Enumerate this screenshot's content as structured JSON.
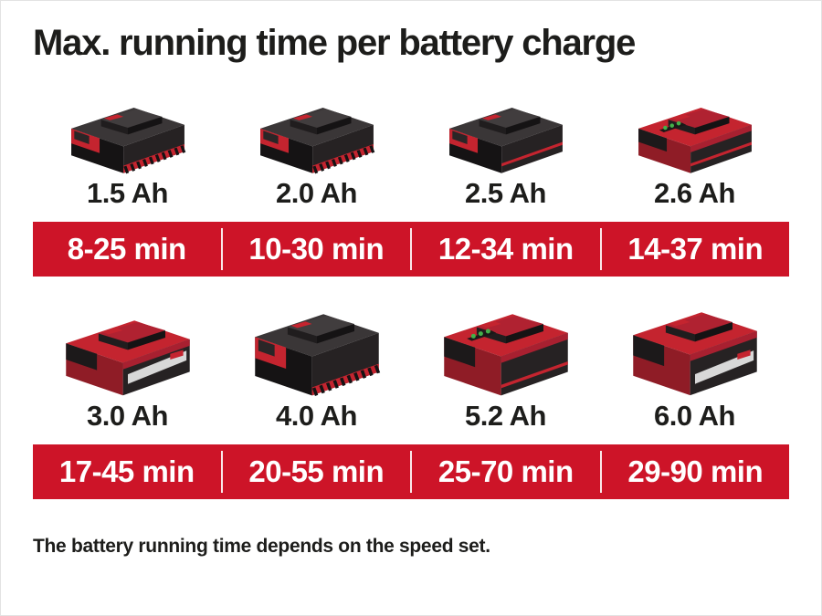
{
  "title": "Max. running time per battery charge",
  "footnote": "The battery running time depends on the speed set.",
  "colors": {
    "bar_red": "#cd1428",
    "battery_red": "#c4242f",
    "text_black": "#1d1d1b",
    "bar_text_white": "#ffffff",
    "led_green": "#43b049"
  },
  "batteries": [
    {
      "capacity": "1.5 Ah",
      "time": "8-25 min",
      "icon": "pxc-battery-small-black"
    },
    {
      "capacity": "2.0 Ah",
      "time": "10-30 min",
      "icon": "pxc-battery-small-black"
    },
    {
      "capacity": "2.5 Ah",
      "time": "12-34 min",
      "icon": "pxc-battery-small-dark"
    },
    {
      "capacity": "2.6 Ah",
      "time": "14-37 min",
      "icon": "pxc-battery-small-red-leds"
    },
    {
      "capacity": "3.0 Ah",
      "time": "17-45 min",
      "icon": "pxc-battery-medium-red"
    },
    {
      "capacity": "4.0 Ah",
      "time": "20-55 min",
      "icon": "pxc-battery-large-black"
    },
    {
      "capacity": "5.2 Ah",
      "time": "25-70 min",
      "icon": "pxc-battery-large-red-leds"
    },
    {
      "capacity": "6.0 Ah",
      "time": "29-90 min",
      "icon": "pxc-battery-large-red"
    }
  ],
  "chart_data": {
    "type": "table",
    "title": "Max. running time per battery charge",
    "categories": [
      "1.5 Ah",
      "2.0 Ah",
      "2.5 Ah",
      "2.6 Ah",
      "3.0 Ah",
      "4.0 Ah",
      "5.2 Ah",
      "6.0 Ah"
    ],
    "values": [
      "8-25 min",
      "10-30 min",
      "12-34 min",
      "14-37 min",
      "17-45 min",
      "20-55 min",
      "25-70 min",
      "29-90 min"
    ],
    "run_time_min_ranges": [
      [
        8,
        25
      ],
      [
        10,
        30
      ],
      [
        12,
        34
      ],
      [
        14,
        37
      ],
      [
        17,
        45
      ],
      [
        20,
        55
      ],
      [
        25,
        70
      ],
      [
        29,
        90
      ]
    ],
    "unit": "min",
    "note": "The battery running time depends on the speed set."
  }
}
